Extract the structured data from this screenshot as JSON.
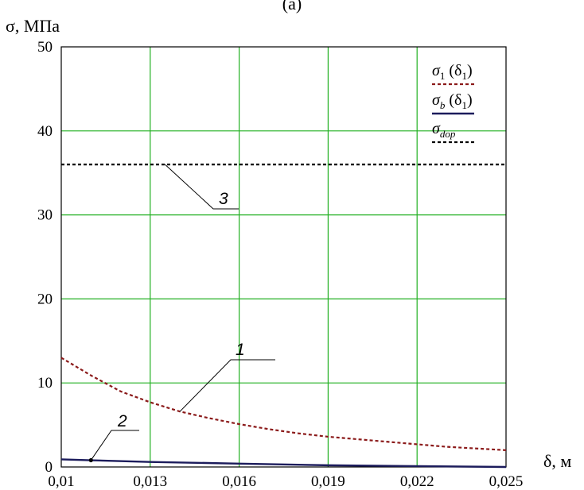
{
  "caption": "(a)",
  "chart_data": {
    "type": "line",
    "ylabel": "σ, МПа",
    "xlabel": "δ, м",
    "xlim": [
      0.01,
      0.025
    ],
    "ylim": [
      0,
      50
    ],
    "x_ticks": [
      0.01,
      0.013,
      0.016,
      0.019,
      0.022,
      0.025
    ],
    "x_tick_labels": [
      "0,01",
      "0,013",
      "0,016",
      "0,019",
      "0,022",
      "0,025"
    ],
    "y_ticks": [
      0,
      10,
      20,
      30,
      40,
      50
    ],
    "y_tick_labels": [
      "0",
      "10",
      "20",
      "30",
      "40",
      "50"
    ],
    "grid": true,
    "legend_position": "top-right",
    "series": [
      {
        "key": "s1",
        "legend": {
          "base": "σ",
          "sub": "1",
          "tail": " (δ",
          "sub2": "1",
          "end": ")"
        },
        "color": "#8b1a1a",
        "style": "dashed",
        "callout": "1",
        "x": [
          0.01,
          0.011,
          0.012,
          0.013,
          0.014,
          0.015,
          0.016,
          0.017,
          0.018,
          0.019,
          0.02,
          0.021,
          0.022,
          0.023,
          0.024,
          0.025
        ],
        "y": [
          13.0,
          10.9,
          9.0,
          7.7,
          6.6,
          5.8,
          5.1,
          4.5,
          4.0,
          3.6,
          3.3,
          3.0,
          2.7,
          2.4,
          2.2,
          2.0
        ]
      },
      {
        "key": "sb",
        "legend": {
          "base": "σ",
          "sub": "b",
          "tail": " (δ",
          "sub2": "1",
          "end": ")"
        },
        "color": "#1c1c5c",
        "style": "solid",
        "callout": "2",
        "x": [
          0.01,
          0.011,
          0.013,
          0.016,
          0.019,
          0.022,
          0.025
        ],
        "y": [
          0.9,
          0.8,
          0.6,
          0.4,
          0.2,
          0.1,
          0.0
        ]
      },
      {
        "key": "sdop",
        "legend": {
          "base": "σ",
          "sub": "dop",
          "tail": "",
          "sub2": "",
          "end": ""
        },
        "color": "#000000",
        "style": "dashed",
        "callout": "3",
        "x": [
          0.01,
          0.025
        ],
        "y": [
          36,
          36
        ]
      }
    ]
  }
}
